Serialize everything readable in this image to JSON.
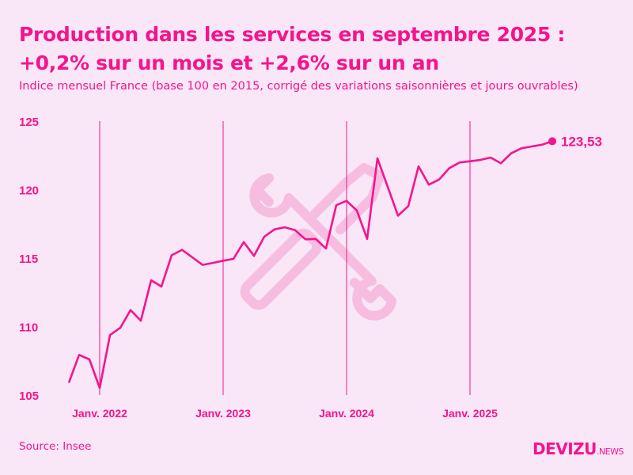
{
  "title_line1": "Production dans les services en septembre 2025 :",
  "title_line2": "+0,2% sur un mois et +2,6% sur un an",
  "subtitle": "Indice mensuel France (base 100 en 2015, corrigé des variations saisonnières et jours ouvrables)",
  "source": "Source: Insee",
  "logo": {
    "main": "DEVIZU",
    "suffix": "NEWS"
  },
  "colors": {
    "accent": "#f5148c",
    "background": "#f9e7f8",
    "watermark": "#f7bde0"
  },
  "watermark_icon": "wrench-screwdriver-icon",
  "chart_data": {
    "type": "line",
    "title": "Production dans les services en septembre 2025 : +0,2% sur un mois et +2,6% sur un an",
    "xlabel": "",
    "ylabel": "",
    "ylim": [
      105,
      125
    ],
    "yticks": [
      "105",
      "110",
      "115",
      "120",
      "125"
    ],
    "xticks": [
      {
        "label": "Janv. 2022",
        "date": "2022-01"
      },
      {
        "label": "Janv. 2023",
        "date": "2023-01"
      },
      {
        "label": "Janv. 2024",
        "date": "2024-01"
      },
      {
        "label": "Janv. 2025",
        "date": "2025-01"
      }
    ],
    "grid": "vertical lines at January",
    "start": "2021-10",
    "end_label": "123,53",
    "values": [
      105.9,
      107.93,
      107.6,
      105.52,
      109.38,
      109.91,
      111.2,
      110.43,
      113.38,
      112.92,
      115.21,
      115.6,
      115.06,
      114.5,
      114.65,
      114.81,
      114.94,
      116.17,
      115.16,
      116.56,
      117.1,
      117.25,
      117.04,
      116.37,
      116.4,
      115.7,
      118.86,
      119.18,
      118.47,
      116.4,
      122.28,
      120.2,
      118.1,
      118.8,
      121.7,
      120.36,
      120.74,
      121.57,
      121.98,
      122.07,
      122.17,
      122.34,
      121.92,
      122.65,
      123.02,
      123.15,
      123.28,
      123.53
    ]
  }
}
